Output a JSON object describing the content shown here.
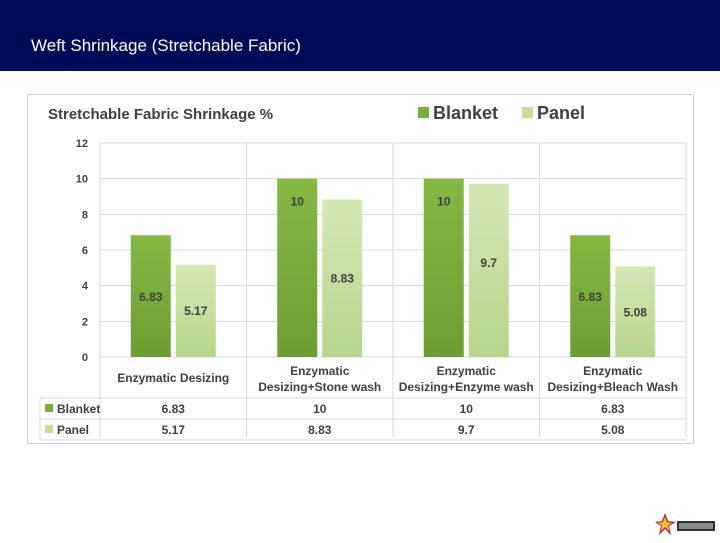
{
  "slide": {
    "title": "Weft Shrinkage (Stretchable Fabric)"
  },
  "colors": {
    "header_bg": "#000b58",
    "blanket": "#7aad3a",
    "panel": "#c4df9a"
  },
  "chart_data": {
    "type": "bar",
    "title": "Stretchable Fabric Shrinkage %",
    "categories": [
      [
        "Enzymatic Desizing"
      ],
      [
        "Enzymatic",
        "Desizing+Stone wash"
      ],
      [
        "Enzymatic",
        "Desizing+Enzyme wash"
      ],
      [
        "Enzymatic",
        "Desizing+Bleach Wash"
      ]
    ],
    "series": [
      {
        "name": "Blanket",
        "values": [
          6.83,
          10,
          10,
          6.83
        ],
        "labels": [
          "6.83",
          "10",
          "10",
          "6.83"
        ],
        "color": "#7aad3a"
      },
      {
        "name": "Panel",
        "values": [
          5.17,
          8.83,
          9.7,
          5.08
        ],
        "labels": [
          "5.17",
          "8.83",
          "9.7",
          "5.08"
        ],
        "color": "#c4df9a"
      }
    ],
    "ylim": [
      0,
      12
    ],
    "yticks": [
      0,
      2,
      4,
      6,
      8,
      10,
      12
    ],
    "grid": true,
    "legend_position": "top-right",
    "data_table": true
  }
}
